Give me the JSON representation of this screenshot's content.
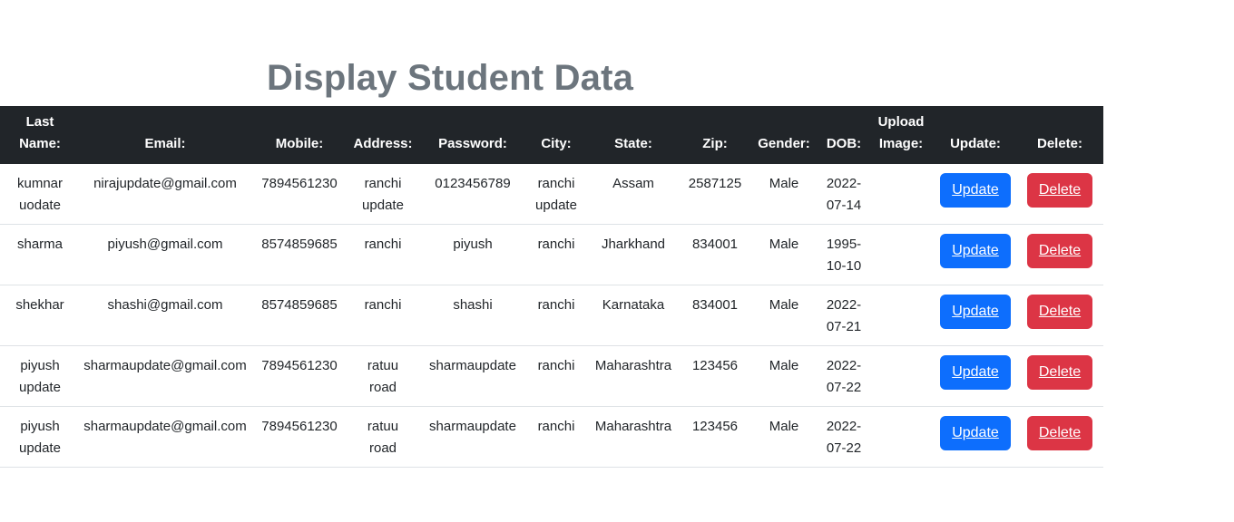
{
  "page": {
    "title": "Display Student Data"
  },
  "table": {
    "headers": {
      "last_name": "Last Name:",
      "email": "Email:",
      "mobile": "Mobile:",
      "address": "Address:",
      "password": "Password:",
      "city": "City:",
      "state": "State:",
      "zip": "Zip:",
      "gender": "Gender:",
      "dob": "DOB:",
      "upload_image": "Upload Image:",
      "update": "Update:",
      "delete": "Delete:"
    },
    "update_label": "Update",
    "delete_label": "Delete",
    "rows": [
      {
        "last_name": "kumnar uodate",
        "email": "nirajupdate@gmail.com",
        "mobile": "7894561230",
        "address": "ranchi update",
        "password": "0123456789",
        "city": "ranchi update",
        "state": "Assam",
        "zip": "2587125",
        "gender": "Male",
        "dob": "2022-07-14",
        "image": ""
      },
      {
        "last_name": "sharma",
        "email": "piyush@gmail.com",
        "mobile": "8574859685",
        "address": "ranchi",
        "password": "piyush",
        "city": "ranchi",
        "state": "Jharkhand",
        "zip": "834001",
        "gender": "Male",
        "dob": "1995-10-10",
        "image": ""
      },
      {
        "last_name": "shekhar",
        "email": "shashi@gmail.com",
        "mobile": "8574859685",
        "address": "ranchi",
        "password": "shashi",
        "city": "ranchi",
        "state": "Karnataka",
        "zip": "834001",
        "gender": "Male",
        "dob": "2022-07-21",
        "image": ""
      },
      {
        "last_name": "piyush update",
        "email": "sharmaupdate@gmail.com",
        "mobile": "7894561230",
        "address": "ratuu road",
        "password": "sharmaupdate",
        "city": "ranchi",
        "state": "Maharashtra",
        "zip": "123456",
        "gender": "Male",
        "dob": "2022-07-22",
        "image": ""
      },
      {
        "last_name": "piyush update",
        "email": "sharmaupdate@gmail.com",
        "mobile": "7894561230",
        "address": "ratuu road",
        "password": "sharmaupdate",
        "city": "ranchi",
        "state": "Maharashtra",
        "zip": "123456",
        "gender": "Male",
        "dob": "2022-07-22",
        "image": ""
      }
    ]
  },
  "colors": {
    "header_bg": "#212529",
    "title": "#6c757d",
    "update_button": "#0d6efd",
    "delete_button": "#dc3545"
  }
}
